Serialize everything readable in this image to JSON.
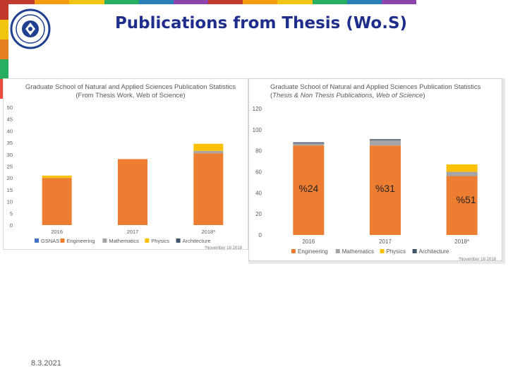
{
  "slide": {
    "title": "Publications from Thesis (Wo.S)",
    "date": "8.3.2021"
  },
  "colors": {
    "title": "#1f2d8c",
    "GSNAS": "#4472c4",
    "Engineering": "#ed7d31",
    "Mathematics": "#a5a5a5",
    "Physics": "#ffc000",
    "Architecture": "#44546a",
    "stripe": [
      "#c0392b",
      "#f39c12",
      "#f1c40f",
      "#27ae60",
      "#2980b9",
      "#8e44ad"
    ]
  },
  "chart_data": [
    {
      "type": "bar",
      "stacked": true,
      "title": "Graduate School of Natural and Applied Sciences Publication Statistics (From Thesis Work, Web of Science)",
      "note": "*November 18 2018",
      "categories": [
        "2016",
        "2017",
        "2018*"
      ],
      "ylim": [
        0,
        50
      ],
      "yticks": [
        0,
        5,
        10,
        15,
        20,
        25,
        30,
        35,
        40,
        45,
        50
      ],
      "series": [
        {
          "name": "GSNAS",
          "values": [
            0,
            0,
            0
          ]
        },
        {
          "name": "Engineering",
          "values": [
            20,
            28,
            30.5
          ]
        },
        {
          "name": "Mathematics",
          "values": [
            0,
            0,
            1
          ]
        },
        {
          "name": "Physics",
          "values": [
            1,
            0,
            3
          ]
        },
        {
          "name": "Architecture",
          "values": [
            0,
            0,
            0
          ]
        }
      ],
      "legend": "bottom",
      "grid": false
    },
    {
      "type": "bar",
      "stacked": true,
      "title_prefix": "Graduate School of Natural and Applied Sciences Publication Statistics (",
      "title_italic": "Thesis & Non Thesis Publications, Web of Science",
      "title_suffix": ")",
      "note": "*November 18 2018",
      "categories": [
        "2016",
        "2017",
        "2018*"
      ],
      "ylim": [
        0,
        120
      ],
      "yticks": [
        0,
        20,
        40,
        60,
        80,
        100,
        120
      ],
      "series": [
        {
          "name": "Engineering",
          "values": [
            85,
            85,
            56
          ]
        },
        {
          "name": "Mathematics",
          "values": [
            2,
            5,
            4
          ]
        },
        {
          "name": "Physics",
          "values": [
            0,
            0,
            7
          ]
        },
        {
          "name": "Architecture",
          "values": [
            1,
            1,
            0
          ]
        }
      ],
      "annotations": [
        "%24",
        "%31",
        "%51"
      ],
      "legend": "bottom",
      "grid": false
    }
  ]
}
